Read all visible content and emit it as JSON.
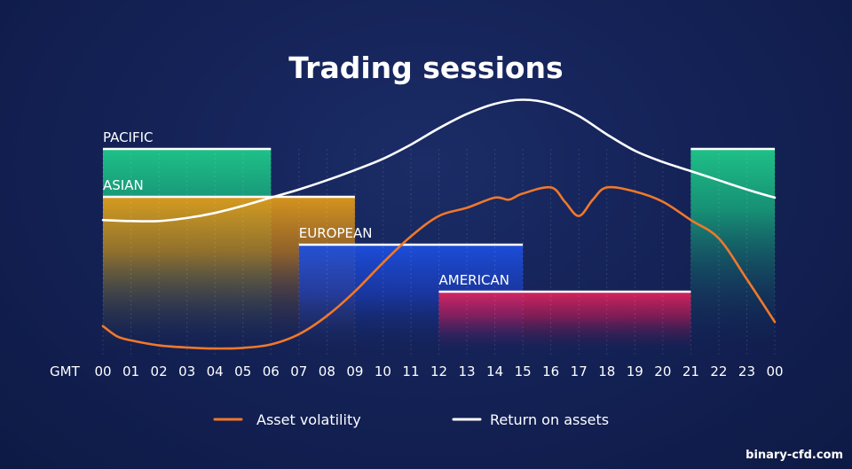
{
  "chart_data": {
    "type": "line",
    "title": "Trading sessions",
    "axis_prefix": "GMT",
    "x_ticks": [
      "00",
      "01",
      "02",
      "03",
      "04",
      "05",
      "06",
      "07",
      "08",
      "09",
      "10",
      "11",
      "12",
      "13",
      "14",
      "15",
      "16",
      "17",
      "18",
      "19",
      "20",
      "21",
      "22",
      "23",
      "00"
    ],
    "sessions": [
      {
        "name": "PACIFIC",
        "start": 0,
        "end": 6,
        "level": 1,
        "color": "#1fc98a",
        "second_span": {
          "start": 21,
          "end": 24
        }
      },
      {
        "name": "ASIAN",
        "start": 0,
        "end": 9,
        "level": 2,
        "color": "#e09a1a"
      },
      {
        "name": "EUROPEAN",
        "start": 7,
        "end": 15,
        "level": 3,
        "color": "#1c4fe0"
      },
      {
        "name": "AMERICAN",
        "start": 12,
        "end": 21,
        "level": 4,
        "color": "#e0245e"
      }
    ],
    "series": [
      {
        "name": "Asset volatility",
        "color": "#f0782a",
        "x": [
          0,
          0.5,
          1,
          2,
          3,
          4,
          5,
          6,
          7,
          8,
          9,
          10,
          11,
          12,
          13,
          14,
          14.5,
          15,
          16,
          16.5,
          17,
          17.5,
          18,
          19,
          20,
          21,
          22,
          23,
          24
        ],
        "y": [
          14,
          9,
          7,
          4.5,
          3.5,
          3,
          3.3,
          5,
          10,
          19,
          31,
          45,
          58,
          68,
          72,
          77,
          76,
          79,
          82,
          75,
          68,
          76,
          82,
          80,
          75,
          66,
          57,
          37,
          16
        ]
      },
      {
        "name": "Return on assets",
        "color": "#ffffff",
        "x": [
          0,
          1,
          2,
          3,
          4,
          5,
          6,
          7,
          8,
          9,
          10,
          11,
          12,
          13,
          14,
          15,
          16,
          17,
          18,
          19,
          20,
          21,
          22,
          23,
          24
        ],
        "y": [
          66,
          65.5,
          65.5,
          67,
          69.5,
          73,
          77,
          81,
          85.5,
          90.5,
          96,
          103,
          111,
          118,
          123,
          125,
          123,
          117,
          108,
          100,
          94.5,
          90,
          85.5,
          81,
          77
        ]
      }
    ]
  },
  "legend": {
    "volatility_label": "Asset volatility",
    "return_label": "Return on assets"
  },
  "watermark": "binary-cfd.com"
}
